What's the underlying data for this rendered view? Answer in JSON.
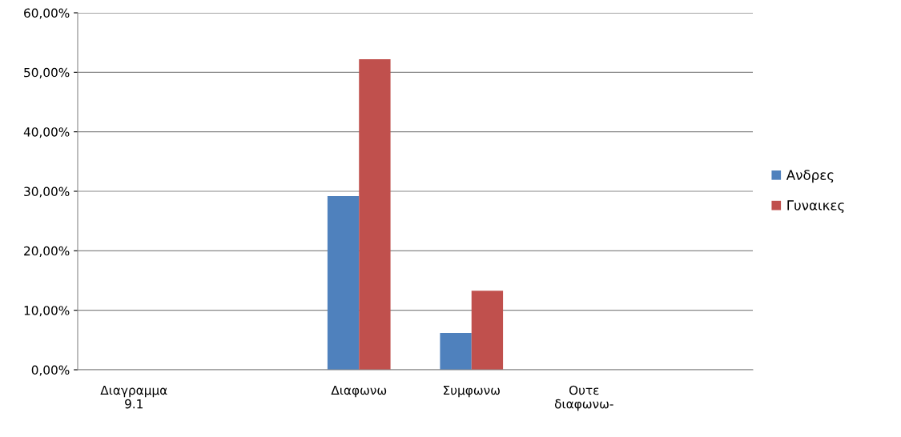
{
  "chart_data": {
    "type": "bar",
    "categories": [
      "Διαγραμμα 9.1",
      null,
      "Διαφωνω",
      "Συμφωνω",
      "Ουτε διαφωνω-",
      null
    ],
    "series": [
      {
        "name": "Ανδρες",
        "color": "#4f81bd",
        "values": [
          null,
          null,
          29.2,
          6.2,
          null,
          null
        ]
      },
      {
        "name": "Γυναικες",
        "color": "#c0504d",
        "values": [
          null,
          null,
          52.2,
          13.3,
          null,
          null
        ]
      }
    ],
    "ylim": [
      0,
      60
    ],
    "yticks": [
      {
        "value": 0,
        "label": "0,00%"
      },
      {
        "value": 10,
        "label": "10,00%"
      },
      {
        "value": 20,
        "label": "20,00%"
      },
      {
        "value": 30,
        "label": "30,00%"
      },
      {
        "value": 40,
        "label": "40,00%"
      },
      {
        "value": 50,
        "label": "50,00%"
      },
      {
        "value": 60,
        "label": "60,00%"
      }
    ],
    "grid": "y",
    "legend": "right"
  }
}
